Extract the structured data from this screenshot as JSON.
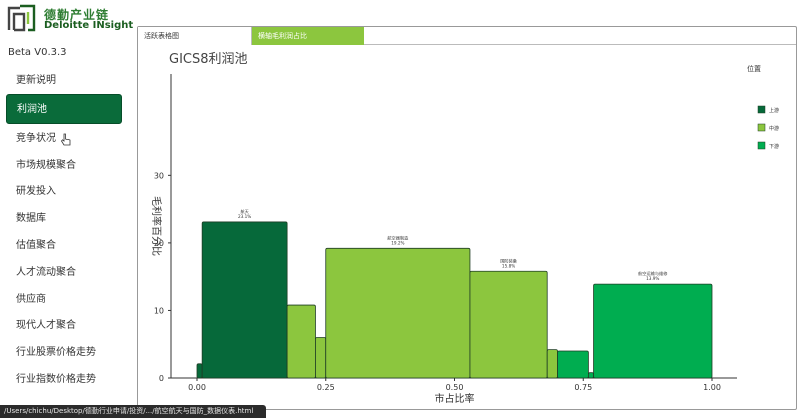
{
  "logo": {
    "cn": "德勤产业链",
    "en": "Deloitte INsight"
  },
  "version": "Beta V0.3.3",
  "nav": [
    "更新说明",
    "利润池",
    "竞争状况",
    "市场规模聚合",
    "研发投入",
    "数据库",
    "估值聚合",
    "人才流动聚合",
    "供应商",
    "现代人才聚合",
    "行业股票价格走势",
    "行业指数价格走势"
  ],
  "active_nav_index": 1,
  "tabs": [
    "活跃表格图",
    "横轴毛利润占比"
  ],
  "active_tab_index": 1,
  "status_url": "/Users/chichu/Desktop/德勤行业申请/投资/.../航空航天与国防_数据仪表.html",
  "colors": {
    "upper": "#06693a",
    "middle": "#8cc63e",
    "lower": "#00ad50",
    "nav_active": "#0a6b3a"
  },
  "chart_data": {
    "type": "marimekko",
    "title": "GICS8利润池",
    "xlabel": "市占比率",
    "ylabel": "毛利率百分比",
    "xlim": [
      0,
      1
    ],
    "ylim": [
      0,
      45
    ],
    "x_ticks": [
      "0.00",
      "0.25",
      "0.50",
      "0.75",
      "1.00"
    ],
    "y_ticks": [
      "0",
      "10",
      "20",
      "30"
    ],
    "legend_title": "位置",
    "legend": [
      {
        "name": "上游",
        "color": "#06693a"
      },
      {
        "name": "中游",
        "color": "#8cc63e"
      },
      {
        "name": "下游",
        "color": "#00ad50"
      }
    ],
    "bars": [
      {
        "x0": 0.0,
        "x1": 0.01,
        "y": 2.1,
        "seg": "upper",
        "label": ""
      },
      {
        "x0": 0.01,
        "x1": 0.175,
        "y": 23.1,
        "seg": "upper",
        "label": "航天\n23.1%"
      },
      {
        "x0": 0.175,
        "x1": 0.23,
        "y": 10.8,
        "seg": "middle",
        "label": ""
      },
      {
        "x0": 0.23,
        "x1": 0.25,
        "y": 6.0,
        "seg": "middle",
        "label": ""
      },
      {
        "x0": 0.25,
        "x1": 0.53,
        "y": 19.2,
        "seg": "middle",
        "label": "航空器制造\n19.2%"
      },
      {
        "x0": 0.53,
        "x1": 0.68,
        "y": 15.8,
        "seg": "middle",
        "label": "国防装备\n15.8%"
      },
      {
        "x0": 0.68,
        "x1": 0.7,
        "y": 4.2,
        "seg": "middle",
        "label": ""
      },
      {
        "x0": 0.7,
        "x1": 0.76,
        "y": 4.0,
        "seg": "lower",
        "label": ""
      },
      {
        "x0": 0.76,
        "x1": 0.77,
        "y": 0.8,
        "seg": "lower",
        "label": ""
      },
      {
        "x0": 0.77,
        "x1": 1.0,
        "y": 13.9,
        "seg": "lower",
        "label": "航空运输与维修\n13.9%"
      }
    ]
  }
}
